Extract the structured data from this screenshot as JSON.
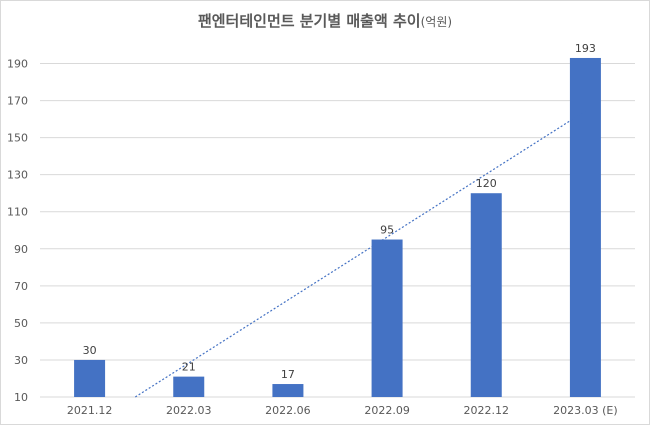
{
  "title": "팬엔터테인먼트 분기별 매출액 추이",
  "title_unit": "(억원)",
  "chart_data": {
    "type": "bar",
    "title": "팬엔터테인먼트 분기별 매출액 추이(억원)",
    "categories": [
      "2021.12",
      "2022.03",
      "2022.06",
      "2022.09",
      "2022.12",
      "2023.03 (E)"
    ],
    "values": [
      30,
      21,
      17,
      95,
      120,
      193
    ],
    "data_labels": [
      "30",
      "21",
      "17",
      "95",
      "120",
      "193"
    ],
    "y_ticks": [
      "10",
      "30",
      "50",
      "70",
      "90",
      "110",
      "130",
      "150",
      "170",
      "190"
    ],
    "ylim": [
      10,
      200
    ],
    "grid": true,
    "legend": "none",
    "trendline": "linear",
    "bar_color": "#4472c4",
    "trendline_color": "#4472c4",
    "grid_color": "#d9d9d9"
  }
}
